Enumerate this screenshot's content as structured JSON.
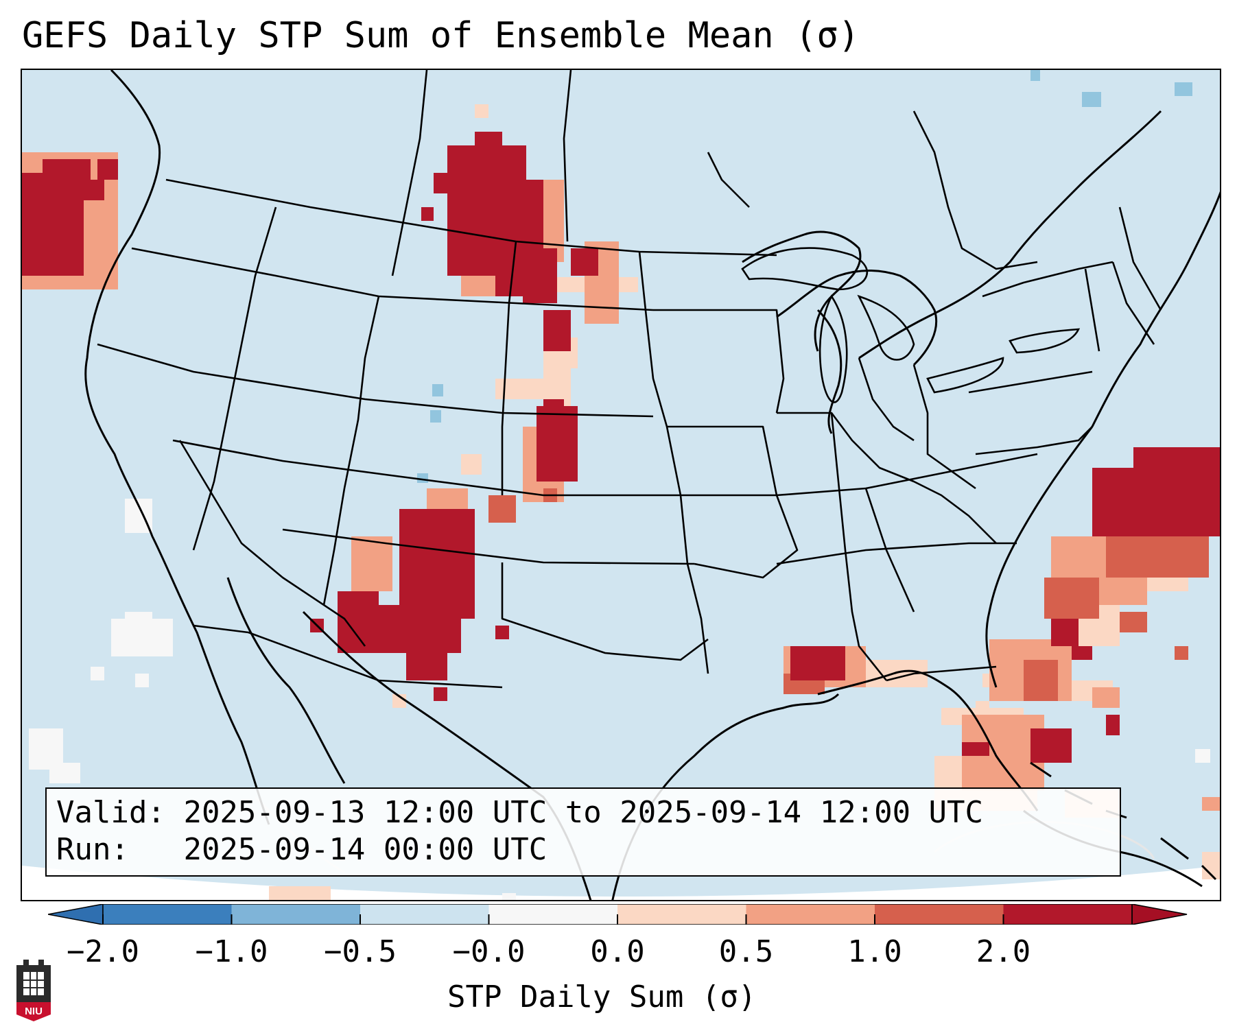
{
  "title": "GEFS Daily STP Sum of Ensemble Mean (σ)",
  "info": {
    "valid_label": "Valid:",
    "valid_range": "2025-09-13 12:00 UTC to 2025-09-14 12:00 UTC",
    "run_label": "Run:",
    "run_time": "2025-09-14 00:00 UTC"
  },
  "colorbar": {
    "label": "STP Daily Sum (σ)",
    "ticks": [
      "−2.0",
      "−1.0",
      "−0.5",
      "−0.0",
      "0.0",
      "0.5",
      "1.0",
      "2.0"
    ],
    "colors": [
      "#3b7fbd",
      "#7fb4d8",
      "#cde3ef",
      "#f7f7f7",
      "#fbd8c4",
      "#f2a184",
      "#d6604d",
      "#b2182b"
    ],
    "under_color": "#2f6fb0",
    "over_color": "#a50f24"
  },
  "map": {
    "background_color": "#d1e5f0",
    "border_color": "#000000"
  },
  "logo": {
    "text": "NIU"
  }
}
